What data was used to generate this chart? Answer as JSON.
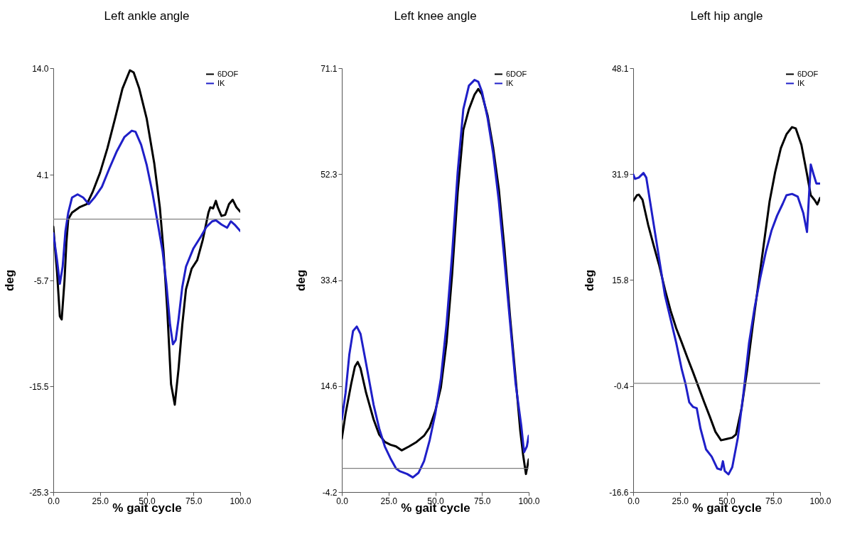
{
  "chart_data": [
    {
      "type": "line",
      "title": "Left ankle angle",
      "xlabel": "% gait cycle",
      "ylabel": "deg",
      "legend": "top right",
      "xlim": [
        0,
        100
      ],
      "xticks": [
        {
          "value": 0,
          "label": "0.0"
        },
        {
          "value": 25,
          "label": "25.0"
        },
        {
          "value": 50,
          "label": "50.0"
        },
        {
          "value": 75,
          "label": "75.0"
        },
        {
          "value": 100,
          "label": "100.0"
        }
      ],
      "ylim": [
        -25.3,
        14
      ],
      "yticks": [
        {
          "value": -25.3,
          "label": "-25.3"
        },
        {
          "value": -15.5,
          "label": "-15.5"
        },
        {
          "value": -5.7,
          "label": "-5.7"
        },
        {
          "value": 4.1,
          "label": "4.1"
        },
        {
          "value": 14,
          "label": "14.0"
        }
      ],
      "ref_lines": [
        {
          "axis": "y",
          "value": 0,
          "color": "#808080"
        }
      ],
      "series": [
        {
          "name": "6DOF",
          "color": "#000000",
          "x": [
            0,
            2,
            3.5,
            4.5,
            6,
            7,
            8,
            10,
            14,
            18,
            21,
            25,
            29,
            33,
            37,
            41,
            43,
            46,
            50,
            54,
            57,
            59,
            61,
            63,
            65,
            67,
            69,
            71,
            74,
            77,
            80,
            83,
            84,
            85.5,
            87,
            88,
            90,
            92,
            94,
            96,
            98,
            100
          ],
          "values": [
            -0.7,
            -4.9,
            -9.0,
            -9.3,
            -5.7,
            -2.2,
            0,
            0.6,
            1.1,
            1.4,
            2.5,
            4.3,
            6.6,
            9.3,
            12.1,
            13.8,
            13.6,
            12.1,
            9.3,
            5.2,
            1.1,
            -3.0,
            -8.5,
            -15.3,
            -17.2,
            -13.9,
            -9.8,
            -6.5,
            -4.6,
            -3.8,
            -1.9,
            0.6,
            1.1,
            1.0,
            1.7,
            1.1,
            0.3,
            0.4,
            1.4,
            1.8,
            1.1,
            0.7
          ]
        },
        {
          "name": "IK",
          "color": "#1f1fc8",
          "x": [
            0,
            2,
            3.5,
            5,
            6.5,
            8,
            10,
            13,
            16,
            19,
            22,
            26,
            30,
            34,
            38,
            42,
            44,
            47,
            50,
            53,
            56,
            58.5,
            60.5,
            62.5,
            64,
            65.5,
            67,
            69,
            71,
            75,
            79,
            82,
            85,
            87,
            90,
            93,
            95,
            97,
            100
          ],
          "values": [
            -1.3,
            -3.8,
            -6.0,
            -4.4,
            -1.1,
            0.6,
            2.0,
            2.3,
            2.0,
            1.4,
            2.0,
            3.0,
            4.7,
            6.3,
            7.6,
            8.2,
            8.1,
            6.9,
            5.0,
            2.5,
            -0.5,
            -3.0,
            -6.0,
            -9.8,
            -11.6,
            -11.2,
            -9.3,
            -6.3,
            -4.4,
            -2.7,
            -1.6,
            -0.7,
            -0.2,
            -0.1,
            -0.5,
            -0.8,
            -0.2,
            -0.5,
            -1.1
          ]
        }
      ]
    },
    {
      "type": "line",
      "title": "Left knee angle",
      "xlabel": "% gait cycle",
      "ylabel": "deg",
      "legend": "top right",
      "xlim": [
        0,
        100
      ],
      "xticks": [
        {
          "value": 0,
          "label": "0.0"
        },
        {
          "value": 25,
          "label": "25.0"
        },
        {
          "value": 50,
          "label": "50.0"
        },
        {
          "value": 75,
          "label": "75.0"
        },
        {
          "value": 100,
          "label": "100.0"
        }
      ],
      "ylim": [
        -4.2,
        71.1
      ],
      "yticks": [
        -4.2,
        14.6,
        33.4,
        52.3,
        71.1
      ],
      "ref_lines": [
        {
          "axis": "y",
          "value": 0,
          "color": "#808080"
        }
      ],
      "series": [
        {
          "name": "6DOF",
          "color": "#000000",
          "x": [
            0,
            2,
            5,
            7,
            8.5,
            10,
            13,
            17,
            20,
            23,
            26,
            29,
            32,
            36,
            40,
            44,
            47,
            50,
            53,
            56,
            59,
            62,
            65,
            68,
            71,
            73,
            75,
            78,
            81,
            84,
            87,
            90,
            93,
            95.5,
            97,
            98.5,
            100
          ],
          "values": [
            5.3,
            9.7,
            15.0,
            18.1,
            18.9,
            17.8,
            13.4,
            8.7,
            6.0,
            4.7,
            4.2,
            3.9,
            3.2,
            3.9,
            4.7,
            5.8,
            7.3,
            10.2,
            14.4,
            22.3,
            34.4,
            49.1,
            60.1,
            63.8,
            66.4,
            67.4,
            66.4,
            62.7,
            56.9,
            49.6,
            39.1,
            27.0,
            16.0,
            6.6,
            2.4,
            -1.0,
            1.6
          ]
        },
        {
          "name": "IK",
          "color": "#1f1fc8",
          "x": [
            0,
            2,
            4,
            6,
            8,
            10,
            13,
            17,
            20,
            23,
            26,
            29,
            31,
            35,
            38,
            41,
            44,
            47,
            50,
            53,
            56,
            59,
            62,
            65,
            68,
            71,
            73,
            75,
            78,
            81,
            84,
            87,
            90,
            93,
            96,
            97.5,
            99,
            100
          ],
          "values": [
            8.7,
            13.4,
            20.2,
            24.4,
            25.2,
            23.9,
            18.6,
            11.3,
            7.1,
            3.9,
            1.8,
            0.0,
            -0.5,
            -1.0,
            -1.6,
            -0.8,
            1.3,
            5.0,
            9.7,
            16.0,
            25.5,
            38.0,
            52.7,
            63.8,
            68.0,
            69.0,
            68.7,
            66.9,
            62.2,
            55.9,
            47.5,
            37.0,
            26.0,
            15.0,
            7.6,
            2.9,
            3.9,
            5.8
          ]
        }
      ]
    },
    {
      "type": "line",
      "title": "Left hip angle",
      "xlabel": "% gait cycle",
      "ylabel": "deg",
      "legend": "top right",
      "xlim": [
        0,
        100
      ],
      "xticks": [
        {
          "value": 0,
          "label": "0.0"
        },
        {
          "value": 25,
          "label": "25.0"
        },
        {
          "value": 50,
          "label": "50.0"
        },
        {
          "value": 75,
          "label": "75.0"
        },
        {
          "value": 100,
          "label": "100.0"
        }
      ],
      "ylim": [
        -16.6,
        48.1
      ],
      "yticks": [
        -16.6,
        -0.4,
        15.8,
        31.9,
        48.1
      ],
      "ref_lines": [
        {
          "axis": "y",
          "value": 0,
          "color": "#808080"
        }
      ],
      "series": [
        {
          "name": "6DOF",
          "color": "#000000",
          "x": [
            0,
            2,
            3,
            5,
            8,
            11,
            14,
            17,
            20,
            23,
            26,
            29,
            32,
            35,
            38,
            41,
            44,
            47,
            50,
            53,
            55,
            58,
            61,
            64,
            67,
            70,
            73,
            76,
            79,
            82,
            85,
            87,
            90,
            93,
            95,
            97,
            98.5,
            100
          ],
          "values": [
            27.8,
            28.7,
            28.8,
            28.0,
            24.2,
            21.0,
            17.9,
            14.3,
            11.1,
            8.4,
            6.2,
            3.9,
            1.7,
            -0.6,
            -2.9,
            -5.1,
            -7.4,
            -8.7,
            -8.5,
            -8.3,
            -7.8,
            -3.8,
            2.1,
            8.9,
            15.2,
            21.5,
            27.8,
            32.3,
            35.9,
            38.0,
            39.1,
            38.9,
            36.4,
            31.9,
            28.7,
            28.0,
            27.3,
            28.3
          ]
        },
        {
          "name": "IK",
          "color": "#1f1fc8",
          "x": [
            0,
            1,
            3,
            5.5,
            7,
            9,
            11,
            14,
            17,
            20,
            23,
            26,
            28,
            30,
            32,
            34,
            36,
            39,
            42,
            45,
            47,
            48,
            49,
            51,
            53,
            56,
            59,
            62,
            65,
            68,
            71,
            74,
            77,
            80,
            82,
            85,
            88,
            91,
            93,
            94,
            95,
            96.5,
            98,
            100
          ],
          "values": [
            31.9,
            31.2,
            31.4,
            32.1,
            31.4,
            27.8,
            24.2,
            18.8,
            13.4,
            9.8,
            6.2,
            2.1,
            -0.1,
            -2.9,
            -3.6,
            -3.8,
            -6.9,
            -10.1,
            -11.2,
            -13.0,
            -13.2,
            -11.9,
            -13.4,
            -13.9,
            -12.8,
            -8.3,
            -1.5,
            6.2,
            11.6,
            16.1,
            20.1,
            23.3,
            25.6,
            27.4,
            28.7,
            28.9,
            28.5,
            26.0,
            23.1,
            28.3,
            33.4,
            31.9,
            30.5,
            30.5
          ]
        }
      ]
    }
  ]
}
